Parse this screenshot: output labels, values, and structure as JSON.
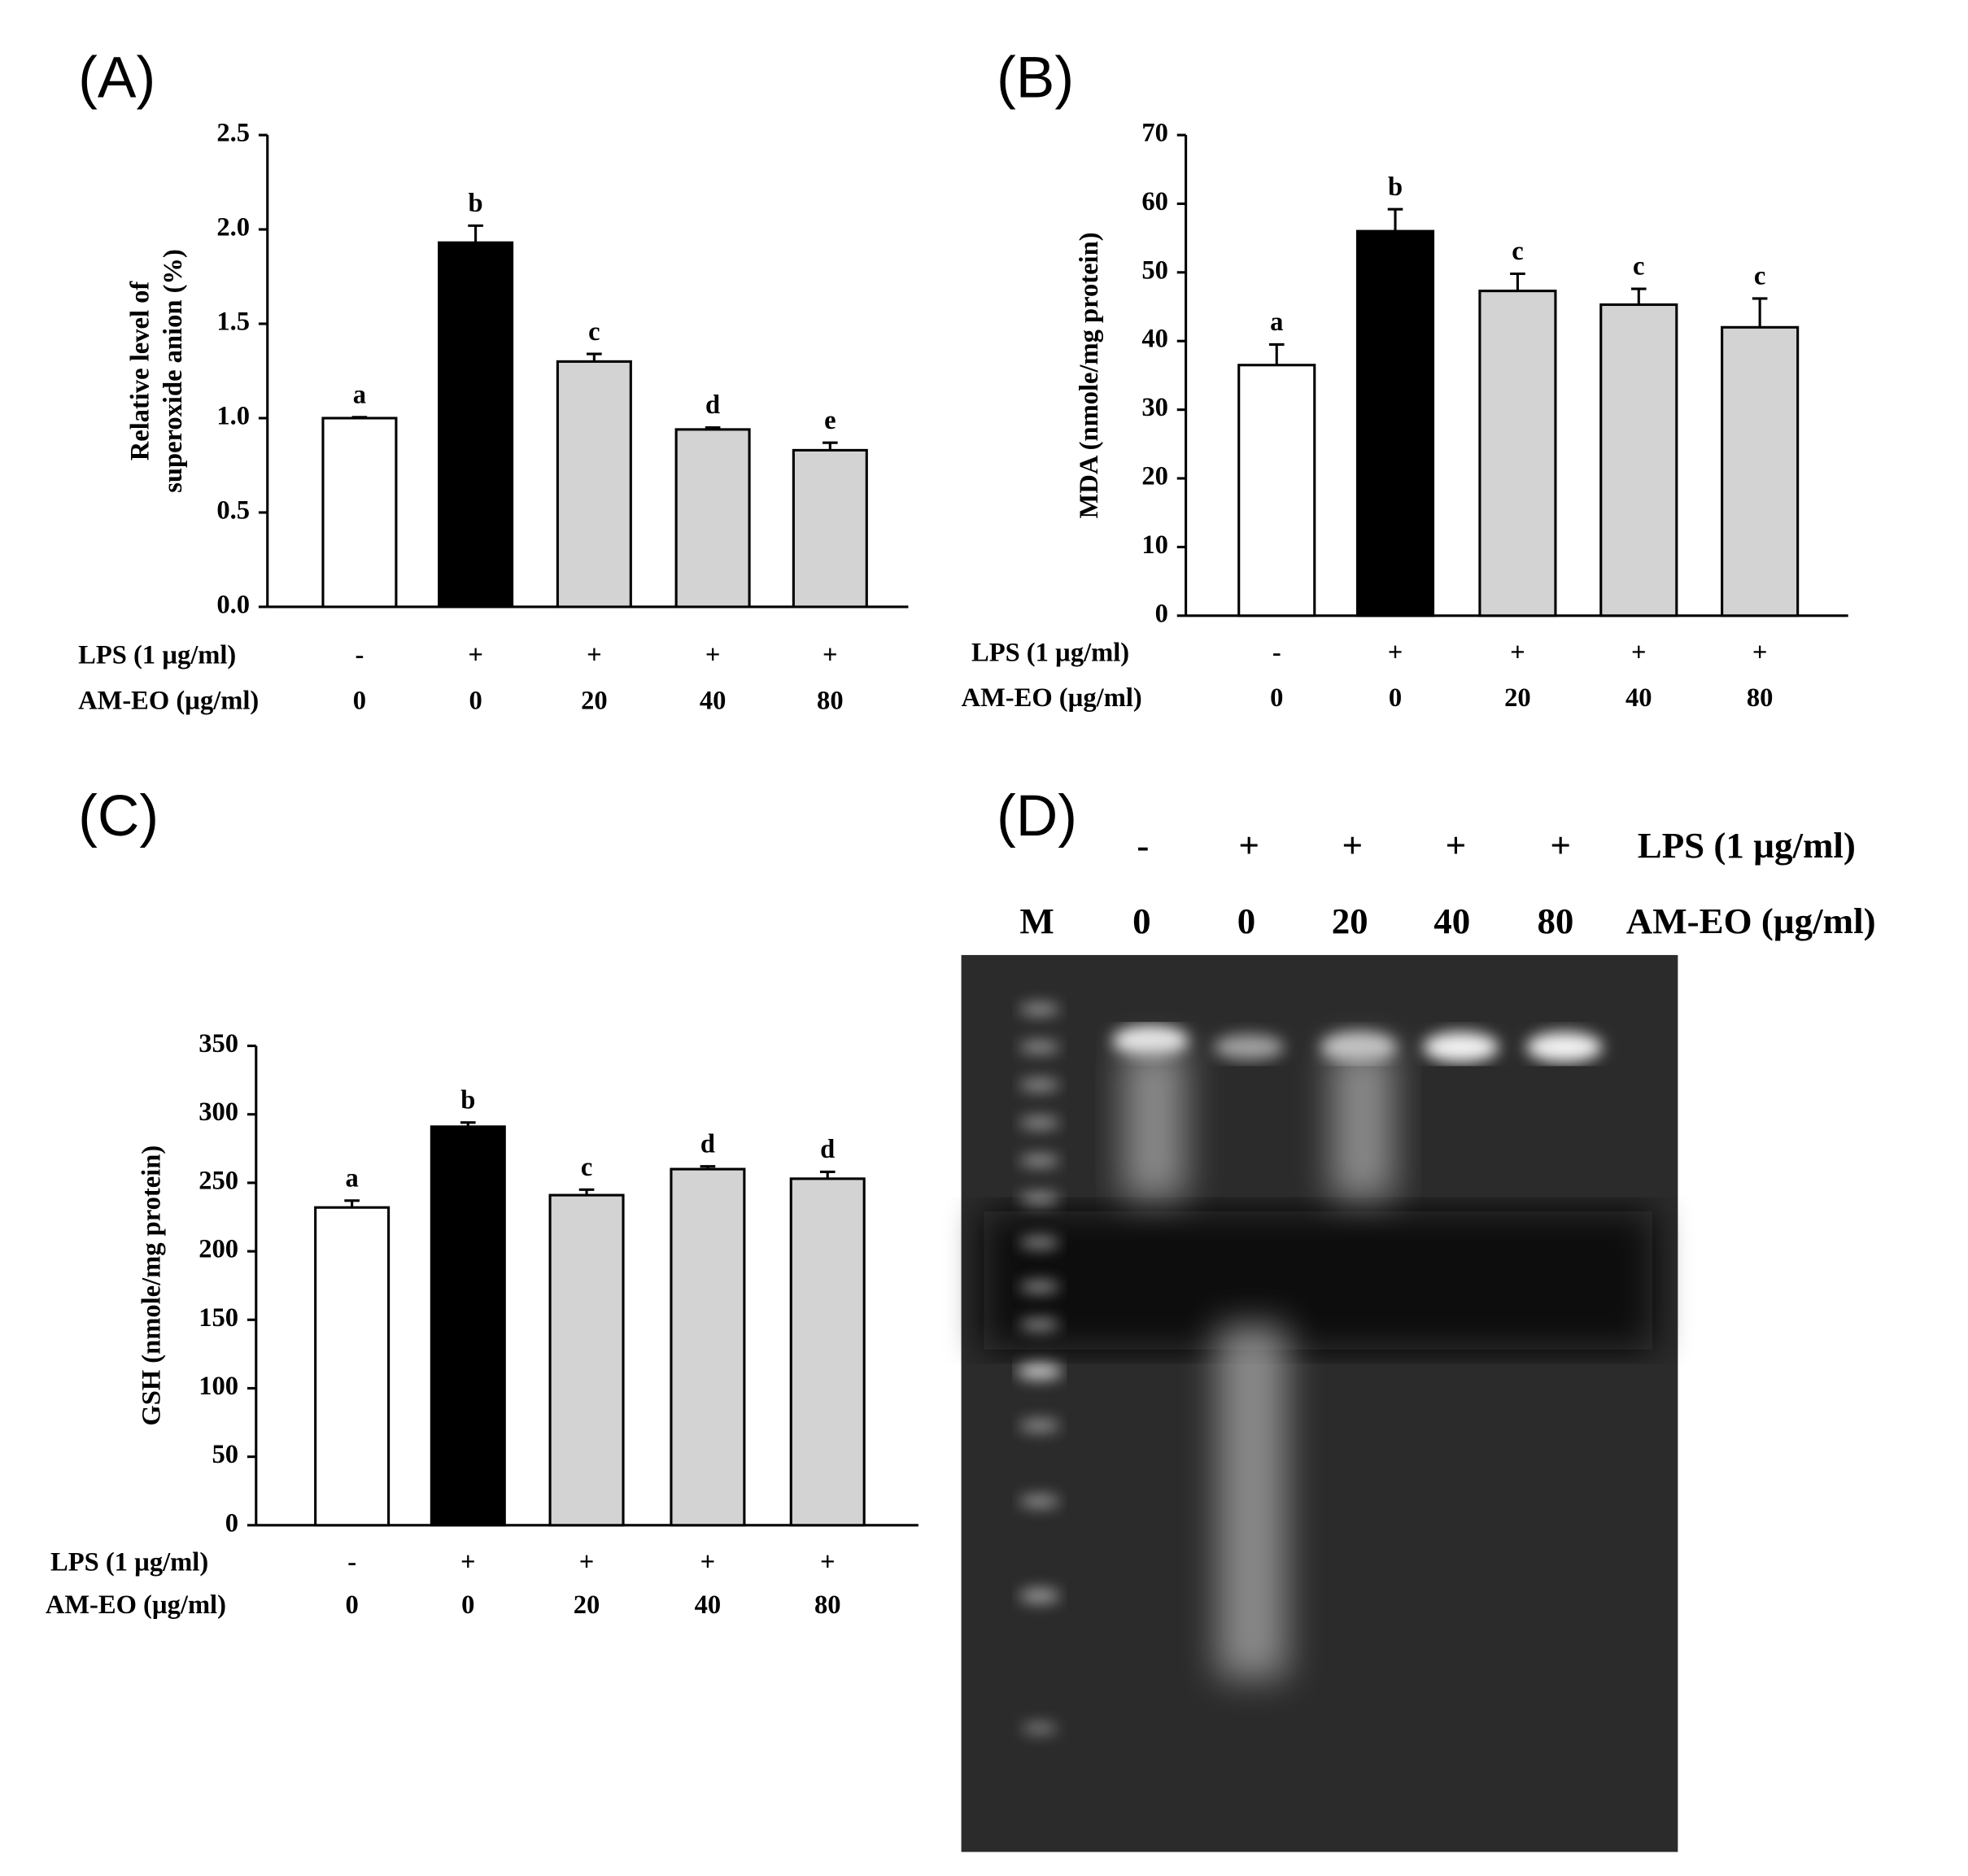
{
  "chart_data": [
    {
      "type": "bar",
      "panel_label": "(A)",
      "ylabel": [
        "Relative level of",
        "superoxide anion (%)"
      ],
      "categories": [
        "0",
        "0",
        "20",
        "40",
        "80"
      ],
      "lps": [
        "-",
        "+",
        "+",
        "+",
        "+"
      ],
      "row_labels": [
        "LPS (1 µg/ml)",
        "AM-EO (µg/ml)"
      ],
      "values": [
        1.0,
        1.93,
        1.3,
        0.94,
        0.83
      ],
      "errors": [
        0.005,
        0.09,
        0.04,
        0.01,
        0.04
      ],
      "letters": [
        "a",
        "b",
        "c",
        "d",
        "e"
      ],
      "colors": [
        "#ffffff",
        "#000000",
        "#d3d3d3",
        "#d3d3d3",
        "#d3d3d3"
      ],
      "ylim": [
        0,
        2.5
      ],
      "yticks": [
        {
          "value": 0,
          "label": "0.0"
        },
        0.5,
        {
          "value": 1,
          "label": "1.0"
        },
        1.5,
        {
          "value": 2,
          "label": "2.0"
        },
        2.5
      ]
    },
    {
      "type": "bar",
      "panel_label": "(B)",
      "ylabel": "MDA (nmole/mg protein)",
      "categories": [
        "0",
        "0",
        "20",
        "40",
        "80"
      ],
      "lps": [
        "-",
        "+",
        "+",
        "+",
        "+"
      ],
      "row_labels": [
        "LPS (1 µg/ml)",
        "AM-EO (µg/ml)"
      ],
      "values": [
        36.5,
        56,
        47.3,
        45.3,
        42
      ],
      "errors": [
        3,
        3.2,
        2.5,
        2.3,
        4.2
      ],
      "letters": [
        "a",
        "b",
        "c",
        "c",
        "c"
      ],
      "colors": [
        "#ffffff",
        "#000000",
        "#d3d3d3",
        "#d3d3d3",
        "#d3d3d3"
      ],
      "ylim": [
        0,
        70
      ],
      "yticks": [
        0,
        10,
        20,
        30,
        40,
        50,
        60,
        70
      ]
    },
    {
      "type": "bar",
      "panel_label": "(C)",
      "ylabel": "GSH (nmole/mg protein)",
      "categories": [
        "0",
        "0",
        "20",
        "40",
        "80"
      ],
      "lps": [
        "-",
        "+",
        "+",
        "+",
        "+"
      ],
      "row_labels": [
        "LPS (1 µg/ml)",
        "AM-EO (µg/ml)"
      ],
      "values": [
        232,
        291,
        241,
        260,
        253
      ],
      "errors": [
        5,
        3,
        4,
        2,
        5
      ],
      "letters": [
        "a",
        "b",
        "c",
        "d",
        "d"
      ],
      "colors": [
        "#ffffff",
        "#000000",
        "#d3d3d3",
        "#d3d3d3",
        "#d3d3d3"
      ],
      "ylim": [
        0,
        350
      ],
      "yticks": [
        0,
        50,
        100,
        150,
        200,
        250,
        300,
        350
      ]
    }
  ],
  "gel": {
    "panel_label": "(D)",
    "lps_label": "LPS (1 µg/ml)",
    "lps": [
      "-",
      "+",
      "+",
      "+",
      "+"
    ],
    "dose_label": "AM-EO (µg/ml)",
    "lanes": [
      "M",
      "0",
      "0",
      "20",
      "40",
      "80"
    ]
  }
}
